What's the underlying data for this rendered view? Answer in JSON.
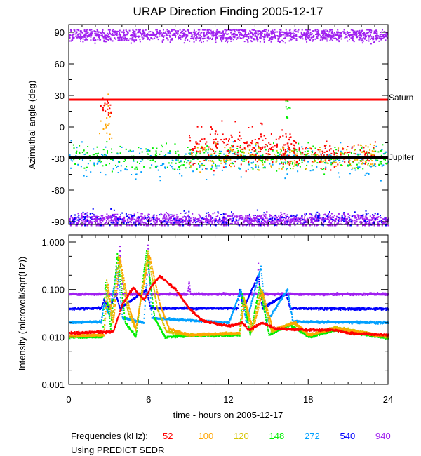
{
  "chart_data": [
    {
      "type": "scatter",
      "title": "URAP Direction Finding  2005-12-17",
      "ylabel": "Azimuthal angle (deg)",
      "xlim": [
        0,
        24
      ],
      "ylim": [
        -93,
        93
      ],
      "yticks": [
        "90",
        "60",
        "30",
        "0",
        "-30",
        "-60",
        "-90"
      ],
      "reference_lines": [
        {
          "label": "Saturn",
          "angle": 26,
          "color": "#ff0000"
        },
        {
          "label": "Jupiter",
          "angle": -29,
          "color": "#000000"
        }
      ],
      "clusters": [
        {
          "series": "940",
          "hours": [
            0,
            24
          ],
          "angle": 88,
          "spread": 3,
          "count": 1400
        },
        {
          "series": "940",
          "hours": [
            0,
            24
          ],
          "angle": -88,
          "spread": 3,
          "count": 1400
        },
        {
          "series": "540",
          "hours": [
            0,
            24
          ],
          "angle": -87,
          "spread": 4,
          "count": 250
        },
        {
          "series": "148",
          "hours": [
            0,
            24
          ],
          "angle": -28,
          "spread": 6,
          "count": 380
        },
        {
          "series": "272",
          "hours": [
            0,
            24
          ],
          "angle": -32,
          "spread": 8,
          "count": 260
        },
        {
          "series": "120",
          "hours": [
            9,
            23
          ],
          "angle": -28,
          "spread": 5,
          "count": 120
        },
        {
          "series": "100",
          "hours": [
            9,
            23
          ],
          "angle": -27,
          "spread": 6,
          "count": 120
        },
        {
          "series": "52",
          "hours": [
            9,
            17
          ],
          "angle": -18,
          "spread": 9,
          "count": 220
        },
        {
          "series": "52",
          "hours": [
            16,
            23
          ],
          "angle": -25,
          "spread": 6,
          "count": 120
        },
        {
          "series": "52",
          "hours": [
            2.3,
            3.2
          ],
          "angle": 18,
          "spread": 6,
          "count": 25
        },
        {
          "series": "100",
          "hours": [
            2.2,
            3.2
          ],
          "angle": 5,
          "spread": 10,
          "count": 20
        },
        {
          "series": "148",
          "hours": [
            16.2,
            16.6
          ],
          "angle": 20,
          "spread": 6,
          "count": 12
        }
      ]
    },
    {
      "type": "line",
      "ylabel": "Intensity (microvolt/sqrt(Hz))",
      "xlabel": "time - hours on 2005-12-17",
      "xlim": [
        0,
        24
      ],
      "ylim": [
        0.001,
        1.0
      ],
      "yscale": "log",
      "xticks": [
        "0",
        "6",
        "12",
        "18",
        "24"
      ],
      "yticks": [
        "1.000",
        "0.100",
        "0.010",
        "0.001"
      ],
      "series": [
        {
          "name": "52",
          "color": "#ff0000",
          "points": [
            [
              0,
              0.012
            ],
            [
              3.3,
              0.013
            ],
            [
              4.0,
              0.05
            ],
            [
              4.8,
              0.11
            ],
            [
              5.6,
              0.06
            ],
            [
              6.2,
              0.12
            ],
            [
              6.8,
              0.19
            ],
            [
              8,
              0.1
            ],
            [
              9,
              0.04
            ],
            [
              10,
              0.022
            ],
            [
              12,
              0.017
            ],
            [
              13,
              0.02
            ],
            [
              13.5,
              0.014
            ],
            [
              14.5,
              0.02
            ],
            [
              15.5,
              0.015
            ],
            [
              18,
              0.014
            ],
            [
              20,
              0.014
            ],
            [
              21,
              0.012
            ],
            [
              24,
              0.011
            ]
          ]
        },
        {
          "name": "100",
          "color": "#ffa500",
          "points": [
            [
              0,
              0.0105
            ],
            [
              2.6,
              0.011
            ],
            [
              2.9,
              0.12
            ],
            [
              3.3,
              0.02
            ],
            [
              3.8,
              0.45
            ],
            [
              4.5,
              0.04
            ],
            [
              5,
              0.015
            ],
            [
              6,
              0.55
            ],
            [
              6.8,
              0.05
            ],
            [
              7.5,
              0.015
            ],
            [
              9,
              0.011
            ],
            [
              12.8,
              0.012
            ],
            [
              13.2,
              0.06
            ],
            [
              13.8,
              0.014
            ],
            [
              14.5,
              0.09
            ],
            [
              15.3,
              0.014
            ],
            [
              17,
              0.02
            ],
            [
              18,
              0.011
            ],
            [
              20,
              0.015
            ],
            [
              24,
              0.01
            ]
          ]
        },
        {
          "name": "120",
          "color": "#d4c400",
          "points": [
            [
              0,
              0.0105
            ],
            [
              2.6,
              0.011
            ],
            [
              2.8,
              0.15
            ],
            [
              3.2,
              0.02
            ],
            [
              3.7,
              0.5
            ],
            [
              4.4,
              0.035
            ],
            [
              5,
              0.014
            ],
            [
              5.9,
              0.6
            ],
            [
              6.6,
              0.04
            ],
            [
              7.3,
              0.013
            ],
            [
              9,
              0.011
            ],
            [
              12.8,
              0.012
            ],
            [
              13.1,
              0.07
            ],
            [
              13.7,
              0.013
            ],
            [
              14.4,
              0.1
            ],
            [
              15.2,
              0.013
            ],
            [
              16.8,
              0.02
            ],
            [
              18,
              0.011
            ],
            [
              20,
              0.016
            ],
            [
              24,
              0.01
            ]
          ]
        },
        {
          "name": "148",
          "color": "#00ee00",
          "points": [
            [
              0,
              0.01
            ],
            [
              2.5,
              0.01
            ],
            [
              2.7,
              0.14
            ],
            [
              3.1,
              0.015
            ],
            [
              3.6,
              0.55
            ],
            [
              4.2,
              0.02
            ],
            [
              5,
              0.01
            ],
            [
              5.8,
              0.65
            ],
            [
              6.4,
              0.025
            ],
            [
              7.2,
              0.01
            ],
            [
              9,
              0.0105
            ],
            [
              12.8,
              0.011
            ],
            [
              13.0,
              0.08
            ],
            [
              13.6,
              0.011
            ],
            [
              14.3,
              0.12
            ],
            [
              15,
              0.011
            ],
            [
              16.6,
              0.018
            ],
            [
              18,
              0.01
            ],
            [
              20,
              0.014
            ],
            [
              24,
              0.0095
            ]
          ]
        },
        {
          "name": "272",
          "color": "#00a0ff",
          "points": [
            [
              0,
              0.02
            ],
            [
              2.4,
              0.021
            ],
            [
              2.6,
              0.05
            ],
            [
              3.0,
              0.03
            ],
            [
              3.6,
              0.3
            ],
            [
              4.0,
              0.025
            ],
            [
              5.6,
              0.02
            ],
            [
              5.9,
              0.5
            ],
            [
              6.2,
              0.025
            ],
            [
              12,
              0.02
            ],
            [
              12.9,
              0.1
            ],
            [
              13.3,
              0.02
            ],
            [
              14.4,
              0.3
            ],
            [
              14.8,
              0.02
            ],
            [
              16.4,
              0.1
            ],
            [
              16.8,
              0.021
            ],
            [
              24,
              0.02
            ]
          ]
        },
        {
          "name": "540",
          "color": "#0000ff",
          "points": [
            [
              0,
              0.039
            ],
            [
              2.4,
              0.04
            ],
            [
              2.6,
              0.06
            ],
            [
              3,
              0.04
            ],
            [
              3.5,
              0.08
            ],
            [
              3.8,
              0.04
            ],
            [
              5.8,
              0.1
            ],
            [
              6.1,
              0.04
            ],
            [
              12.7,
              0.04
            ],
            [
              12.8,
              0.1
            ],
            [
              13.1,
              0.04
            ],
            [
              14.2,
              0.2
            ],
            [
              14.5,
              0.04
            ],
            [
              16.3,
              0.08
            ],
            [
              16.6,
              0.04
            ],
            [
              24,
              0.039
            ]
          ]
        },
        {
          "name": "940",
          "color": "#a020f0",
          "points": [
            [
              0,
              0.08
            ],
            [
              3.6,
              0.08
            ],
            [
              3.8,
              0.8
            ],
            [
              4.0,
              0.08
            ],
            [
              5.8,
              0.08
            ],
            [
              5.9,
              0.85
            ],
            [
              6.1,
              0.08
            ],
            [
              8.9,
              0.08
            ],
            [
              9.0,
              0.15
            ],
            [
              9.1,
              0.08
            ],
            [
              14.1,
              0.08
            ],
            [
              14.2,
              0.35
            ],
            [
              14.3,
              0.08
            ],
            [
              24,
              0.08
            ]
          ]
        }
      ]
    }
  ],
  "legend": {
    "label": "Frequencies (kHz):",
    "items": [
      {
        "name": "52",
        "color": "#ff0000"
      },
      {
        "name": "100",
        "color": "#ffa500"
      },
      {
        "name": "120",
        "color": "#d4c400"
      },
      {
        "name": "148",
        "color": "#00ee00"
      },
      {
        "name": "272",
        "color": "#00a0ff"
      },
      {
        "name": "540",
        "color": "#0000ff"
      },
      {
        "name": "940",
        "color": "#a020f0"
      }
    ]
  },
  "footnote": "Using PREDICT SEDR"
}
